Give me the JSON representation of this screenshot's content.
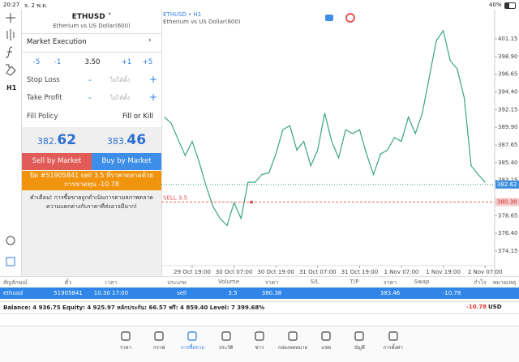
{
  "status_bar": {
    "time": "20:27",
    "date": "จ. 2 พ.ย.",
    "battery": "40%"
  },
  "toolbar": {
    "timeframe": "H1"
  },
  "order_panel": {
    "symbol": "ETHUSD",
    "description": "Etherium vs US Dollar(600)",
    "execution": "Market Execution",
    "volume_steps": [
      "-5",
      "-1",
      "+1",
      "+5"
    ],
    "volume": "3.50",
    "stop_loss": {
      "label": "Stop Loss",
      "value": "ไม่ได้ตั้ง"
    },
    "take_profit": {
      "label": "Take Profit",
      "value": "ไม่ได้ตั้ง"
    },
    "fill_policy": {
      "label": "Fill Policy",
      "value": "Fill or Kill"
    },
    "bid": {
      "main": "382.",
      "pips": "62"
    },
    "ask": {
      "main": "383.",
      "pips": "46"
    },
    "sell_button": "Sell by Market",
    "buy_button": "Buy by Market",
    "notice": "ปิด #51905841 sell 3.5 ที่ราคาตลาดด้วยการขาดทุน -10.78",
    "warning": "คำเตือน! การซื้อขายถูกดำเนินการตามสภาพตลาด ความแตกต่างกับราคาที่ส่งอาจมีมาก!"
  },
  "chart_data": {
    "type": "line",
    "title": "ETHUSD • H1",
    "subtitle": "Etherium vs US Dollar(600)",
    "color": "#3aa57a",
    "categories": [
      null,
      null,
      null,
      null,
      "29 Oct 19:00",
      null,
      null,
      null,
      null,
      null,
      "30 Oct 07:00",
      null,
      null,
      null,
      null,
      null,
      "30 Oct 19:00",
      null,
      null,
      null,
      null,
      null,
      "31 Oct 07:00",
      null,
      null,
      null,
      null,
      null,
      "31 Oct 19:00",
      null,
      null,
      null,
      null,
      null,
      "1 Nov 07:00",
      null,
      null,
      null,
      null,
      null,
      "1 Nov 19:00",
      null,
      null,
      null,
      null,
      null,
      "2 Nov 07:00"
    ],
    "values": [
      391.2,
      390.4,
      388.3,
      386.3,
      388.1,
      385.5,
      382.4,
      379.8,
      378.3,
      377.4,
      380.3,
      378.3,
      382.9,
      382.9,
      383.9,
      384.1,
      386.5,
      389.6,
      390.1,
      387.0,
      388.1,
      385.0,
      387.0,
      391.7,
      388.1,
      386.0,
      389.6,
      389.1,
      389.6,
      386.5,
      383.9,
      386.5,
      387.0,
      388.6,
      388.1,
      391.2,
      389.1,
      391.7,
      396.3,
      400.9,
      402.2,
      398.4,
      397.3,
      393.7,
      385.0,
      383.9,
      382.9
    ],
    "ylim": [
      372.3,
      404.65
    ],
    "yticks": [
      401.15,
      {
        "value": 398.9,
        "label": "398.90"
      },
      396.65,
      {
        "value": 394.4,
        "label": "394.40"
      },
      392.15,
      {
        "value": 389.9,
        "label": "389.90"
      },
      387.65,
      {
        "value": 385.4,
        "label": "385.40"
      },
      383.15,
      378.65,
      {
        "value": 376.4,
        "label": "376.40"
      },
      374.15
    ],
    "grid": false,
    "bid_line": {
      "value": 382.62,
      "color": "#2e9e6e"
    },
    "position_line": {
      "value": 380.38,
      "label": "SELL 3.5",
      "color": "#e05555"
    }
  },
  "positions": {
    "columns": [
      "สัญลักษณ์",
      "ตั๋ว",
      "เวลา",
      "ประเภท",
      "Volume",
      "ราคา",
      "S/L",
      "T/P",
      "ราคา",
      "Swap",
      "กำไร",
      "หมายเหตุ"
    ],
    "rows": [
      [
        "ethusd",
        "51905841",
        "10.30 17:00",
        "sell",
        "3.5",
        "380.38",
        null,
        null,
        "383.46",
        null,
        "-10.78",
        null
      ]
    ]
  },
  "balance": {
    "summary": "Balance: 4 936.75 Equity: 4 925.97 หลักประกัน: 66.57 ฟรี: 4 859.40 Level: 7 399.68%",
    "profit": "-10.78",
    "currency": "USD"
  },
  "tabs": [
    "ราคา",
    "กราฟ",
    "การซื้อขาย",
    "ประวัติ",
    "ข่าว",
    "กล่องจดหมาย",
    "แชท",
    "บัญชี",
    "การตั้งค่า"
  ],
  "active_tab": 2
}
